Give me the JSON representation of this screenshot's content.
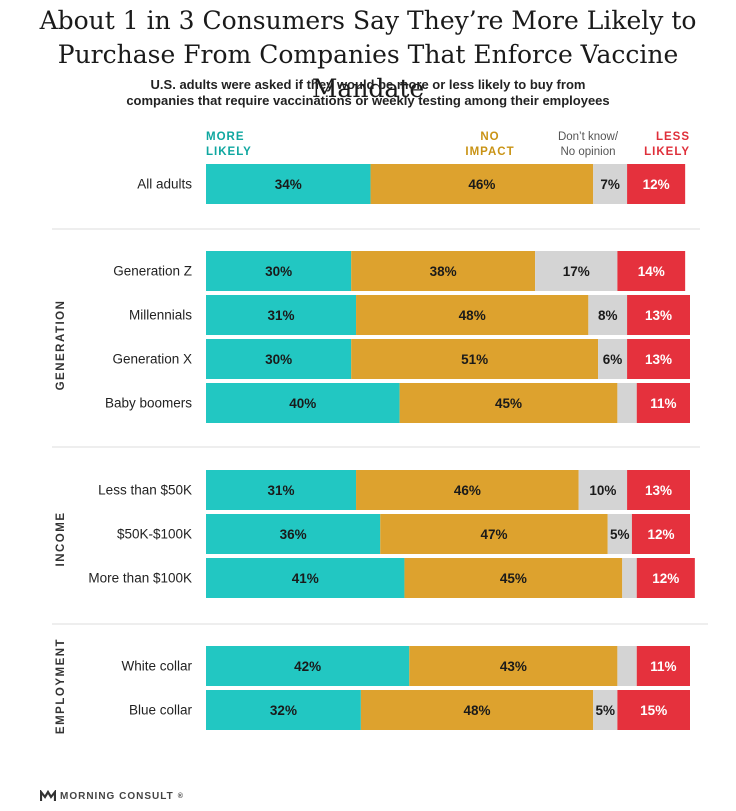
{
  "title_lines": [
    "About 1 in 3 Consumers Say They’re More Likely to",
    "Purchase From Companies That Enforce Vaccine Mandate"
  ],
  "subtitle_lines": [
    "U.S. adults were asked if they would be more or less likely to buy from",
    "companies that require vaccinations or weekly testing among their employees"
  ],
  "footer": {
    "brand": "MORNING CONSULT",
    "trademark": "®"
  },
  "colors": {
    "more_likely": "#22c7c2",
    "no_impact": "#dda22e",
    "dont_know": "#d4d4d4",
    "less_likely": "#e5313d",
    "more_likely_label": "#0fa7a0",
    "no_impact_label": "#c99315",
    "less_likely_label": "#df2f3a"
  },
  "chart_data": {
    "type": "bar",
    "orientation": "horizontal",
    "stacked": true,
    "xlim": [
      0,
      100
    ],
    "legend_position": "top",
    "series": [
      {
        "name": "MORE LIKELY",
        "label_lines": [
          "MORE",
          "LIKELY"
        ],
        "color_key": "more_likely"
      },
      {
        "name": "NO IMPACT",
        "label_lines": [
          "NO",
          "IMPACT"
        ],
        "color_key": "no_impact"
      },
      {
        "name": "Don't know/ No opinion",
        "label_lines": [
          "Don’t know/",
          "No opinion"
        ],
        "color_key": "dont_know"
      },
      {
        "name": "LESS LIKELY",
        "label_lines": [
          "LESS",
          "LIKELY"
        ],
        "color_key": "less_likely"
      }
    ],
    "groups": [
      {
        "name": "",
        "rows": [
          {
            "label": "All adults",
            "values": [
              34,
              46,
              7,
              12
            ],
            "labels": [
              "34%",
              "46%",
              "7%",
              "12%"
            ]
          }
        ]
      },
      {
        "name": "GENERATION",
        "rows": [
          {
            "label": "Generation Z",
            "values": [
              30,
              38,
              17,
              14
            ],
            "labels": [
              "30%",
              "38%",
              "17%",
              "14%"
            ]
          },
          {
            "label": "Millennials",
            "values": [
              31,
              48,
              8,
              13
            ],
            "labels": [
              "31%",
              "48%",
              "8%",
              "13%"
            ]
          },
          {
            "label": "Generation X",
            "values": [
              30,
              51,
              6,
              13
            ],
            "labels": [
              "30%",
              "51%",
              "6%",
              "13%"
            ]
          },
          {
            "label": "Baby boomers",
            "values": [
              40,
              45,
              4,
              11
            ],
            "labels": [
              "40%",
              "45%",
              "",
              "11%"
            ]
          }
        ]
      },
      {
        "name": "INCOME",
        "rows": [
          {
            "label": "Less than $50K",
            "values": [
              31,
              46,
              10,
              13
            ],
            "labels": [
              "31%",
              "46%",
              "10%",
              "13%"
            ]
          },
          {
            "label": "$50K-$100K",
            "values": [
              36,
              47,
              5,
              12
            ],
            "labels": [
              "36%",
              "47%",
              "5%",
              "12%"
            ]
          },
          {
            "label": "More than $100K",
            "values": [
              41,
              45,
              3,
              12
            ],
            "labels": [
              "41%",
              "45%",
              "",
              "12%"
            ]
          }
        ]
      },
      {
        "name": "EMPLOYMENT",
        "rows": [
          {
            "label": "White collar",
            "values": [
              42,
              43,
              4,
              11
            ],
            "labels": [
              "42%",
              "43%",
              "",
              "11%"
            ]
          },
          {
            "label": "Blue collar",
            "values": [
              32,
              48,
              5,
              15
            ],
            "labels": [
              "32%",
              "48%",
              "5%",
              "15%"
            ]
          }
        ]
      }
    ]
  }
}
